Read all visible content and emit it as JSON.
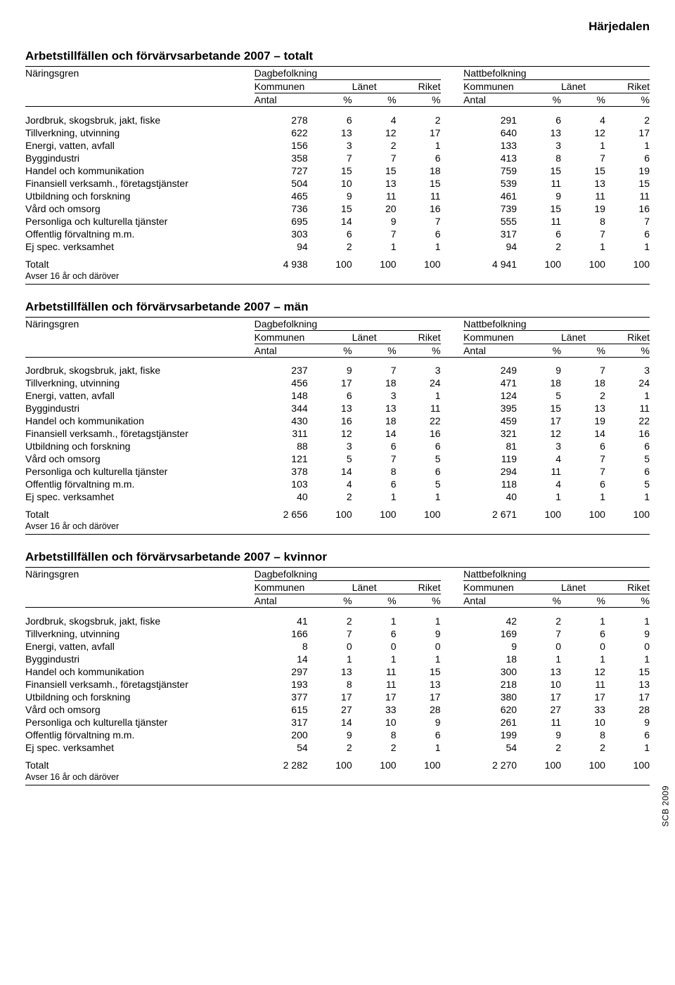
{
  "region": "Härjedalen",
  "side_note": "SCB 2009",
  "footnote": "Avser 16 år och däröver",
  "header": {
    "col0": "Näringsgren",
    "dag": "Dagbefolkning",
    "natt": "Nattbefolkning",
    "kommunen": "Kommunen",
    "lanet": "Länet",
    "riket": "Riket",
    "antal": "Antal",
    "pct": "%"
  },
  "row_labels": [
    "Jordbruk, skogsbruk, jakt, fiske",
    "Tillverkning, utvinning",
    "Energi, vatten, avfall",
    "Byggindustri",
    "Handel och kommunikation",
    "Finansiell verksamh., företagstjänster",
    "Utbildning och forskning",
    "Vård och omsorg",
    "Personliga och kulturella tjänster",
    "Offentlig förvaltning m.m.",
    "Ej spec. verksamhet"
  ],
  "total_label": "Totalt",
  "sections": [
    {
      "title": "Arbetstillfällen och förvärvsarbetande 2007 – totalt",
      "rows": [
        [
          "278",
          "6",
          "4",
          "2",
          "291",
          "6",
          "4",
          "2"
        ],
        [
          "622",
          "13",
          "12",
          "17",
          "640",
          "13",
          "12",
          "17"
        ],
        [
          "156",
          "3",
          "2",
          "1",
          "133",
          "3",
          "1",
          "1"
        ],
        [
          "358",
          "7",
          "7",
          "6",
          "413",
          "8",
          "7",
          "6"
        ],
        [
          "727",
          "15",
          "15",
          "18",
          "759",
          "15",
          "15",
          "19"
        ],
        [
          "504",
          "10",
          "13",
          "15",
          "539",
          "11",
          "13",
          "15"
        ],
        [
          "465",
          "9",
          "11",
          "11",
          "461",
          "9",
          "11",
          "11"
        ],
        [
          "736",
          "15",
          "20",
          "16",
          "739",
          "15",
          "19",
          "16"
        ],
        [
          "695",
          "14",
          "9",
          "7",
          "555",
          "11",
          "8",
          "7"
        ],
        [
          "303",
          "6",
          "7",
          "6",
          "317",
          "6",
          "7",
          "6"
        ],
        [
          "94",
          "2",
          "1",
          "1",
          "94",
          "2",
          "1",
          "1"
        ]
      ],
      "total": [
        "4 938",
        "100",
        "100",
        "100",
        "4 941",
        "100",
        "100",
        "100"
      ]
    },
    {
      "title": "Arbetstillfällen och förvärvsarbetande 2007 – män",
      "rows": [
        [
          "237",
          "9",
          "7",
          "3",
          "249",
          "9",
          "7",
          "3"
        ],
        [
          "456",
          "17",
          "18",
          "24",
          "471",
          "18",
          "18",
          "24"
        ],
        [
          "148",
          "6",
          "3",
          "1",
          "124",
          "5",
          "2",
          "1"
        ],
        [
          "344",
          "13",
          "13",
          "11",
          "395",
          "15",
          "13",
          "11"
        ],
        [
          "430",
          "16",
          "18",
          "22",
          "459",
          "17",
          "19",
          "22"
        ],
        [
          "311",
          "12",
          "14",
          "16",
          "321",
          "12",
          "14",
          "16"
        ],
        [
          "88",
          "3",
          "6",
          "6",
          "81",
          "3",
          "6",
          "6"
        ],
        [
          "121",
          "5",
          "7",
          "5",
          "119",
          "4",
          "7",
          "5"
        ],
        [
          "378",
          "14",
          "8",
          "6",
          "294",
          "11",
          "7",
          "6"
        ],
        [
          "103",
          "4",
          "6",
          "5",
          "118",
          "4",
          "6",
          "5"
        ],
        [
          "40",
          "2",
          "1",
          "1",
          "40",
          "1",
          "1",
          "1"
        ]
      ],
      "total": [
        "2 656",
        "100",
        "100",
        "100",
        "2 671",
        "100",
        "100",
        "100"
      ]
    },
    {
      "title": "Arbetstillfällen och förvärvsarbetande 2007 – kvinnor",
      "rows": [
        [
          "41",
          "2",
          "1",
          "1",
          "42",
          "2",
          "1",
          "1"
        ],
        [
          "166",
          "7",
          "6",
          "9",
          "169",
          "7",
          "6",
          "9"
        ],
        [
          "8",
          "0",
          "0",
          "0",
          "9",
          "0",
          "0",
          "0"
        ],
        [
          "14",
          "1",
          "1",
          "1",
          "18",
          "1",
          "1",
          "1"
        ],
        [
          "297",
          "13",
          "11",
          "15",
          "300",
          "13",
          "12",
          "15"
        ],
        [
          "193",
          "8",
          "11",
          "13",
          "218",
          "10",
          "11",
          "13"
        ],
        [
          "377",
          "17",
          "17",
          "17",
          "380",
          "17",
          "17",
          "17"
        ],
        [
          "615",
          "27",
          "33",
          "28",
          "620",
          "27",
          "33",
          "28"
        ],
        [
          "317",
          "14",
          "10",
          "9",
          "261",
          "11",
          "10",
          "9"
        ],
        [
          "200",
          "9",
          "8",
          "6",
          "199",
          "9",
          "8",
          "6"
        ],
        [
          "54",
          "2",
          "2",
          "1",
          "54",
          "2",
          "2",
          "1"
        ]
      ],
      "total": [
        "2 282",
        "100",
        "100",
        "100",
        "2 270",
        "100",
        "100",
        "100"
      ]
    }
  ]
}
